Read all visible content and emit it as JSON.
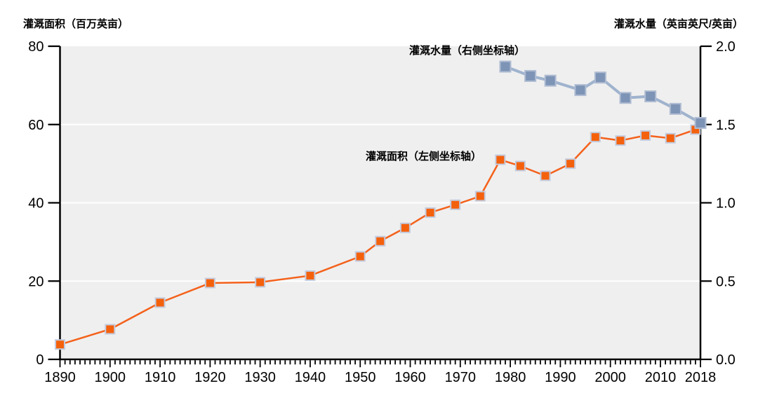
{
  "chart_data": {
    "type": "line",
    "title": "",
    "plot_bg": "#efefef",
    "grid_color": "#ffffff",
    "axis_color": "#000000",
    "grid_lines_left": [
      20,
      40,
      60
    ],
    "legend_position": "inline-labels",
    "x_axis": {
      "min": 1890,
      "max": 2018,
      "minor_tick_step": 1,
      "major_ticks": [
        {
          "v": 1890,
          "label": "1890"
        },
        {
          "v": 1900,
          "label": "1900"
        },
        {
          "v": 1910,
          "label": "1910"
        },
        {
          "v": 1920,
          "label": "1920"
        },
        {
          "v": 1930,
          "label": "1930"
        },
        {
          "v": 1940,
          "label": "1940"
        },
        {
          "v": 1950,
          "label": "1950"
        },
        {
          "v": 1960,
          "label": "1960"
        },
        {
          "v": 1970,
          "label": "1970"
        },
        {
          "v": 1980,
          "label": "1980"
        },
        {
          "v": 1990,
          "label": "1990"
        },
        {
          "v": 2000,
          "label": "2000"
        },
        {
          "v": 2010,
          "label": "2010"
        },
        {
          "v": 2018,
          "label": "2018"
        }
      ]
    },
    "left_axis": {
      "title": "灌溉面积（百万英亩）",
      "min": 0,
      "max": 80,
      "ticks": [
        {
          "v": 0,
          "label": "0"
        },
        {
          "v": 20,
          "label": "20"
        },
        {
          "v": 40,
          "label": "40"
        },
        {
          "v": 60,
          "label": "60"
        },
        {
          "v": 80,
          "label": "80"
        }
      ]
    },
    "right_axis": {
      "title": "灌溉水量（英亩英尺/英亩）",
      "min": 0,
      "max": 2.0,
      "ticks": [
        {
          "v": 0,
          "label": "0.0"
        },
        {
          "v": 0.5,
          "label": "0.5"
        },
        {
          "v": 1.0,
          "label": "1.0"
        },
        {
          "v": 1.5,
          "label": "1.5"
        },
        {
          "v": 2.0,
          "label": "2.0"
        }
      ]
    },
    "series": [
      {
        "name": "灌溉面积（左侧坐标轴）",
        "axis": "left",
        "line_color": "#f4611b",
        "marker_color": "#f4610d",
        "marker_border": "#c3cbde",
        "line_width": 2.5,
        "marker_size": 13,
        "points": [
          [
            1890,
            3.8
          ],
          [
            1900,
            7.7
          ],
          [
            1910,
            14.5
          ],
          [
            1920,
            19.5
          ],
          [
            1930,
            19.7
          ],
          [
            1940,
            21.4
          ],
          [
            1950,
            26.3
          ],
          [
            1954,
            30.2
          ],
          [
            1959,
            33.6
          ],
          [
            1964,
            37.5
          ],
          [
            1969,
            39.5
          ],
          [
            1974,
            41.7
          ],
          [
            1978,
            51.0
          ],
          [
            1982,
            49.4
          ],
          [
            1987,
            46.9
          ],
          [
            1992,
            50.0
          ],
          [
            1997,
            56.8
          ],
          [
            2002,
            55.9
          ],
          [
            2007,
            57.2
          ],
          [
            2012,
            56.5
          ],
          [
            2017,
            58.7
          ]
        ]
      },
      {
        "name": "灌溉水量（右侧坐标轴）",
        "axis": "right",
        "line_color": "#9fb3ce",
        "marker_color": "#7d94b6",
        "marker_border": "#afbcd2",
        "line_width": 4,
        "marker_size": 15,
        "points": [
          [
            1979,
            1.87
          ],
          [
            1984,
            1.81
          ],
          [
            1988,
            1.78
          ],
          [
            1994,
            1.72
          ],
          [
            1998,
            1.8
          ],
          [
            2003,
            1.67
          ],
          [
            2008,
            1.68
          ],
          [
            2013,
            1.6
          ],
          [
            2018,
            1.51
          ]
        ]
      }
    ]
  }
}
